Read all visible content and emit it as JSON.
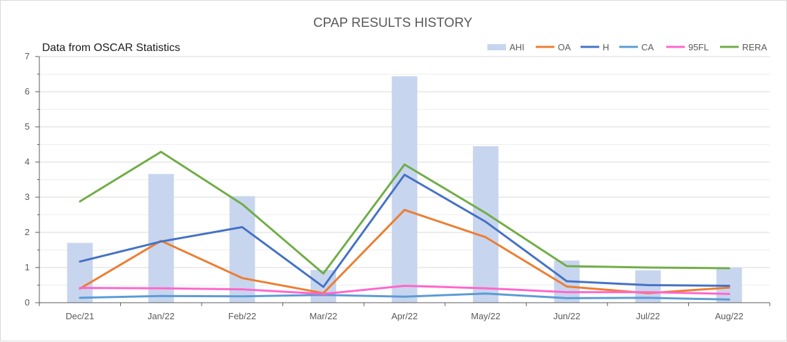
{
  "chart_data": {
    "type": "bar",
    "title": "CPAP RESULTS HISTORY",
    "subtitle": "Data from OSCAR Statistics",
    "categories": [
      "Dec/21",
      "Jan/22",
      "Feb/22",
      "Mar/22",
      "Apr/22",
      "May/22",
      "Jun/22",
      "Jul/22",
      "Aug/22"
    ],
    "ylim": [
      0,
      7
    ],
    "yticks": [
      0,
      1,
      2,
      3,
      4,
      5,
      6,
      7
    ],
    "grid": true,
    "legend_position": "top-right",
    "series": [
      {
        "name": "AHI",
        "kind": "bar",
        "color": "#c8d5ee",
        "values": [
          1.7,
          3.66,
          3.03,
          0.93,
          6.44,
          4.45,
          1.2,
          0.92,
          1.0
        ]
      },
      {
        "name": "OA",
        "kind": "line",
        "color": "#ed7d31",
        "values": [
          0.4,
          1.76,
          0.7,
          0.27,
          2.64,
          1.86,
          0.46,
          0.27,
          0.43
        ]
      },
      {
        "name": "H",
        "kind": "line",
        "color": "#4472c4",
        "values": [
          1.17,
          1.74,
          2.15,
          0.45,
          3.64,
          2.3,
          0.61,
          0.5,
          0.48
        ]
      },
      {
        "name": "CA",
        "kind": "line",
        "color": "#5b9bd5",
        "values": [
          0.14,
          0.19,
          0.18,
          0.22,
          0.17,
          0.26,
          0.13,
          0.14,
          0.09
        ]
      },
      {
        "name": "95FL",
        "kind": "line",
        "color": "#ff66cc",
        "values": [
          0.42,
          0.41,
          0.38,
          0.25,
          0.48,
          0.41,
          0.3,
          0.3,
          0.25
        ]
      },
      {
        "name": "RERA",
        "kind": "line",
        "color": "#70ad47",
        "values": [
          2.88,
          4.29,
          2.8,
          0.83,
          3.93,
          2.55,
          1.04,
          1.0,
          0.98
        ]
      }
    ]
  }
}
